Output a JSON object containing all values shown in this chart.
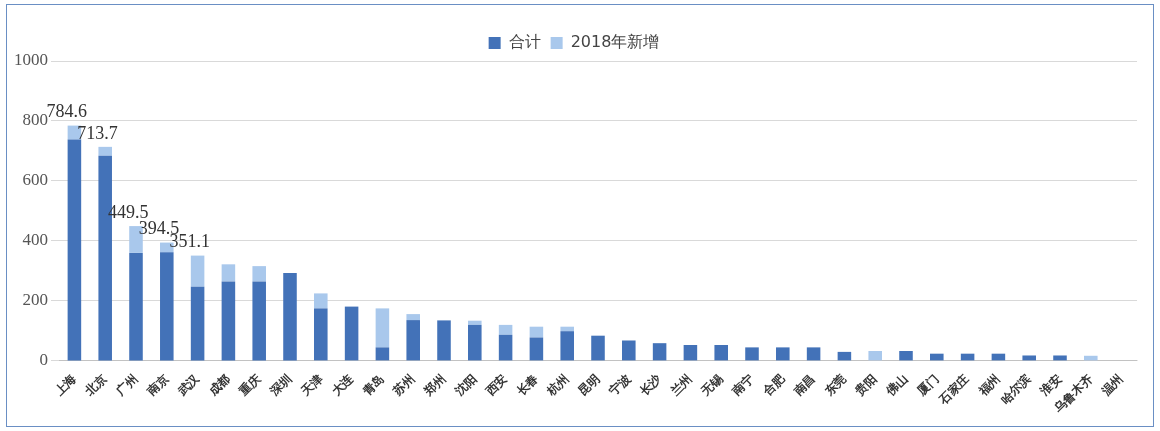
{
  "chart_data": {
    "type": "bar",
    "stacked": true,
    "categories": [
      "上海",
      "北京",
      "广州",
      "南京",
      "武汉",
      "成都",
      "重庆",
      "深圳",
      "天津",
      "大连",
      "青岛",
      "苏州",
      "郑州",
      "沈阳",
      "西安",
      "长春",
      "杭州",
      "昆明",
      "宁波",
      "长沙",
      "兰州",
      "无锡",
      "南宁",
      "合肥",
      "南昌",
      "东莞",
      "贵阳",
      "佛山",
      "厦门",
      "石家庄",
      "福州",
      "哈尔滨",
      "淮安",
      "乌鲁木齐",
      "温州"
    ],
    "series": [
      {
        "name": "合计",
        "color": "#4372b8",
        "values": [
          738,
          684,
          360,
          362,
          247,
          265,
          265,
          293,
          175,
          181,
          45,
          136,
          135,
          120,
          87,
          78,
          99,
          84,
          68,
          59,
          53,
          53,
          45,
          45,
          45,
          30,
          0,
          33,
          24,
          24,
          24,
          18,
          18,
          0,
          null
        ]
      },
      {
        "name": "2018年新增",
        "color": "#a9c8ec",
        "values": [
          46.6,
          29.7,
          89.5,
          32.5,
          104.1,
          57,
          51,
          0,
          50,
          0,
          130,
          20,
          0,
          14,
          33,
          36,
          15,
          0,
          0,
          0,
          0,
          0,
          0,
          0,
          0,
          0,
          33,
          0,
          0,
          0,
          0,
          0,
          0,
          17,
          null
        ]
      }
    ],
    "totals": [
      "784.6",
      "713.7",
      "449.5",
      "394.5",
      "351.1",
      null,
      null,
      null,
      null,
      null,
      null,
      null,
      null,
      null,
      null,
      null,
      null,
      null,
      null,
      null,
      null,
      null,
      null,
      null,
      null,
      null,
      null,
      null,
      null,
      null,
      null,
      null,
      null,
      null,
      null
    ],
    "ylim": [
      0,
      1000
    ],
    "yticks": [
      0,
      200,
      400,
      600,
      800,
      {
        "value": 1000,
        "label": "1000"
      }
    ],
    "grid": "y",
    "legend": "top"
  }
}
